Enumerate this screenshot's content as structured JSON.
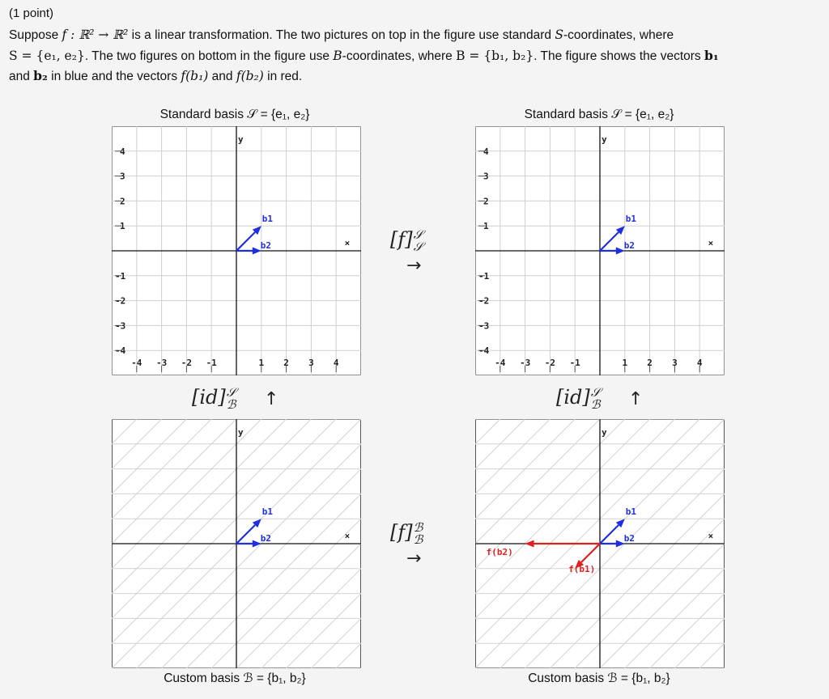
{
  "header": {
    "points": "(1 point)",
    "intro_text_1": "Suppose ",
    "f_map": "f : ℝ² → ℝ²",
    "intro_text_2": " is a linear transformation. The two pictures on top in the figure use standard ",
    "s_sym": "S",
    "intro_text_3": "-coordinates, where",
    "s_def": "S = {e₁, e₂}",
    "intro_text_4": ". The two figures on bottom in the figure use ",
    "b_sym": "B",
    "intro_text_5": "-coordinates, where ",
    "b_def": "B = {b₁, b₂}",
    "intro_text_6": ". The figure shows the vectors ",
    "b1": "b₁",
    "and_text": "and ",
    "b2": "b₂",
    "intro_text_7": " in blue and the vectors ",
    "fb1": "f(b₁)",
    "and_text_2": " and ",
    "fb2": "f(b₂)",
    "intro_text_8": " in red."
  },
  "panels": {
    "top_left_title": "Standard basis 𝒮 = {e₁, e₂}",
    "top_right_title": "Standard basis 𝒮 = {e₁, e₂}",
    "bottom_left_caption": "Custom basis ℬ = {b₁, b₂}",
    "bottom_right_caption": "Custom basis ℬ = {b₁, b₂}"
  },
  "mappings": {
    "f_ss": "[f]",
    "f_ss_sup": "𝒮",
    "f_ss_sub": "𝒮",
    "f_bb": "[f]",
    "f_bb_sup": "ℬ",
    "f_bb_sub": "ℬ",
    "id_left": "[id]",
    "id_left_sup": "𝒮",
    "id_left_sub": "ℬ",
    "id_right": "[id]",
    "id_right_sup": "𝒮",
    "id_right_sub": "ℬ",
    "right_arrow": "→",
    "up_arrow": "↑"
  },
  "axis": {
    "y_label": "y",
    "x_marker": "×",
    "ticks_pos": [
      "1",
      "2",
      "3",
      "4"
    ],
    "ticks_neg": [
      "-1",
      "-2",
      "-3",
      "-4"
    ]
  },
  "vectors": {
    "b1_label": "b1",
    "b2_label": "b2",
    "fb1_label": "f(b1)",
    "fb2_label": "f(b2)",
    "b1": [
      1,
      1
    ],
    "b2": [
      1,
      0
    ],
    "fb1": [
      -1,
      -1
    ],
    "fb2": [
      -3,
      0
    ]
  },
  "colors": {
    "blue": "#1f2fe0",
    "red": "#e0201f",
    "grid": "#cfcfcf",
    "hatch": "#d2d2d2",
    "axis": "#111111"
  }
}
